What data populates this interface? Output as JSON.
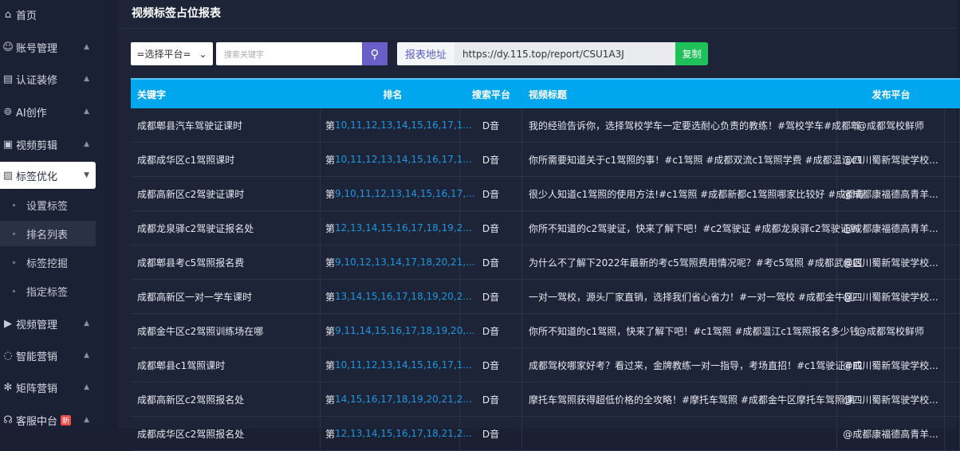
{
  "sidebar": {
    "items": [
      {
        "label": "首页",
        "icon": "home-icon",
        "glyph": "⌂"
      },
      {
        "label": "账号管理",
        "icon": "users-icon",
        "glyph": "☺"
      },
      {
        "label": "认证装修",
        "icon": "certificate-icon",
        "glyph": "▤"
      },
      {
        "label": "AI创作",
        "icon": "ai-icon",
        "glyph": "⊚"
      },
      {
        "label": "视频剪辑",
        "icon": "video-edit-icon",
        "glyph": "▣"
      },
      {
        "label": "标签优化",
        "icon": "tag-optimize-icon",
        "glyph": "▨"
      },
      {
        "label": "视频管理",
        "icon": "video-manage-icon",
        "glyph": "▶"
      },
      {
        "label": "智能营销",
        "icon": "chat-icon",
        "glyph": "◌"
      },
      {
        "label": "矩阵营销",
        "icon": "matrix-icon",
        "glyph": "✻"
      },
      {
        "label": "客服中台",
        "icon": "headset-icon",
        "glyph": "☊",
        "badge": "新"
      }
    ],
    "sub_items": [
      "设置标签",
      "排名列表",
      "标签挖掘",
      "指定标签"
    ],
    "caret_up": "▲",
    "caret_down": "▼"
  },
  "page": {
    "title": "视频标签占位报表"
  },
  "toolbar": {
    "platform_select": "=选择平台=",
    "search_placeholder": "搜索关键字",
    "report_url_label": "报表地址",
    "report_url": "https://dy.115.top/report/CSU1A3J",
    "copy_label": "复制"
  },
  "table": {
    "headers": [
      "关键字",
      "排名",
      "搜索平台",
      "视频标题",
      "发布平台"
    ],
    "rank_prefix": "第",
    "rows": [
      {
        "keyword": "成都郫县汽车驾驶证课时",
        "rank": "10,11,12,13,14,15,16,17,1...",
        "platform": "D音",
        "title": "我的经验告诉你，选择驾校学车一定要选耐心负责的教练！#驾校学车#成都郫",
        "publisher": "@成都驾校鲜师"
      },
      {
        "keyword": "成都成华区c1驾照课时",
        "rank": "10,11,12,13,14,15,16,17,1...",
        "platform": "D音",
        "title": "你所需要知道关于c1驾照的事！#c1驾照 #成都双流c1驾照学费 #成都温江c1",
        "publisher": "@四川蜀新驾驶学校..."
      },
      {
        "keyword": "成都高新区c2驾驶证课时",
        "rank": "9,10,11,12,13,14,15,16,17,...",
        "platform": "D音",
        "title": "很少人知道c1驾照的使用方法!#c1驾照 #成都新都c1驾照哪家比较好 #成都青",
        "publisher": "@成都康福德高青羊..."
      },
      {
        "keyword": "成都龙泉驿c2驾驶证报名处",
        "rank": "12,13,14,15,16,17,18,19,2...",
        "platform": "D音",
        "title": "你所不知道的c2驾驶证，快来了解下吧！#c2驾驶证 #成都龙泉驿c2驾驶证到",
        "publisher": "@成都康福德高青羊..."
      },
      {
        "keyword": "成都郫县考c5驾照报名费",
        "rank": "9,10,12,13,14,17,18,20,21,...",
        "platform": "D音",
        "title": "为什么不了解下2022年最新的考c5驾照费用情况呢？#考c5驾照 #成都武侯区",
        "publisher": "@四川蜀新驾驶学校..."
      },
      {
        "keyword": "成都高新区一对一学车课时",
        "rank": "13,14,15,16,17,18,19,20,2...",
        "platform": "D音",
        "title": "一对一驾校，源头厂家直销，选择我们省心省力！#一对一驾校 #成都金牛区-",
        "publisher": "@四川蜀新驾驶学校..."
      },
      {
        "keyword": "成都金牛区c2驾照训练场在哪",
        "rank": "9,11,14,15,16,17,18,19,20,...",
        "platform": "D音",
        "title": "你所不知道的c1驾照，快来了解下吧！#c1驾照 #成都温江c1驾照报名多少钱",
        "publisher": "@成都驾校鲜师"
      },
      {
        "keyword": "成都郫县c1驾照课时",
        "rank": "10,11,12,13,14,15,16,17,1...",
        "platform": "D音",
        "title": "成都驾校哪家好考？看过来，金牌教练一对一指导，考场直招！#c1驾驶证#成",
        "publisher": "@四川蜀新驾驶学校..."
      },
      {
        "keyword": "成都高新区c2驾照报名处",
        "rank": "14,15,16,17,18,19,20,21,2...",
        "platform": "D音",
        "title": "摩托车驾照获得超低价格的全攻略！#摩托车驾照 #成都金牛区摩托车驾照课",
        "publisher": "@四川蜀新驾驶学校..."
      },
      {
        "keyword": "成都成华区c2驾照报名处",
        "rank": "12,13,14,15,16,17,18,21,2...",
        "platform": "D音",
        "title": "",
        "publisher": "@成都康福德高青羊..."
      }
    ]
  },
  "colors": {
    "header": "#00a6ee",
    "rank": "#1f98e0",
    "copy": "#1fc25a",
    "search": "#6a5fc8"
  }
}
